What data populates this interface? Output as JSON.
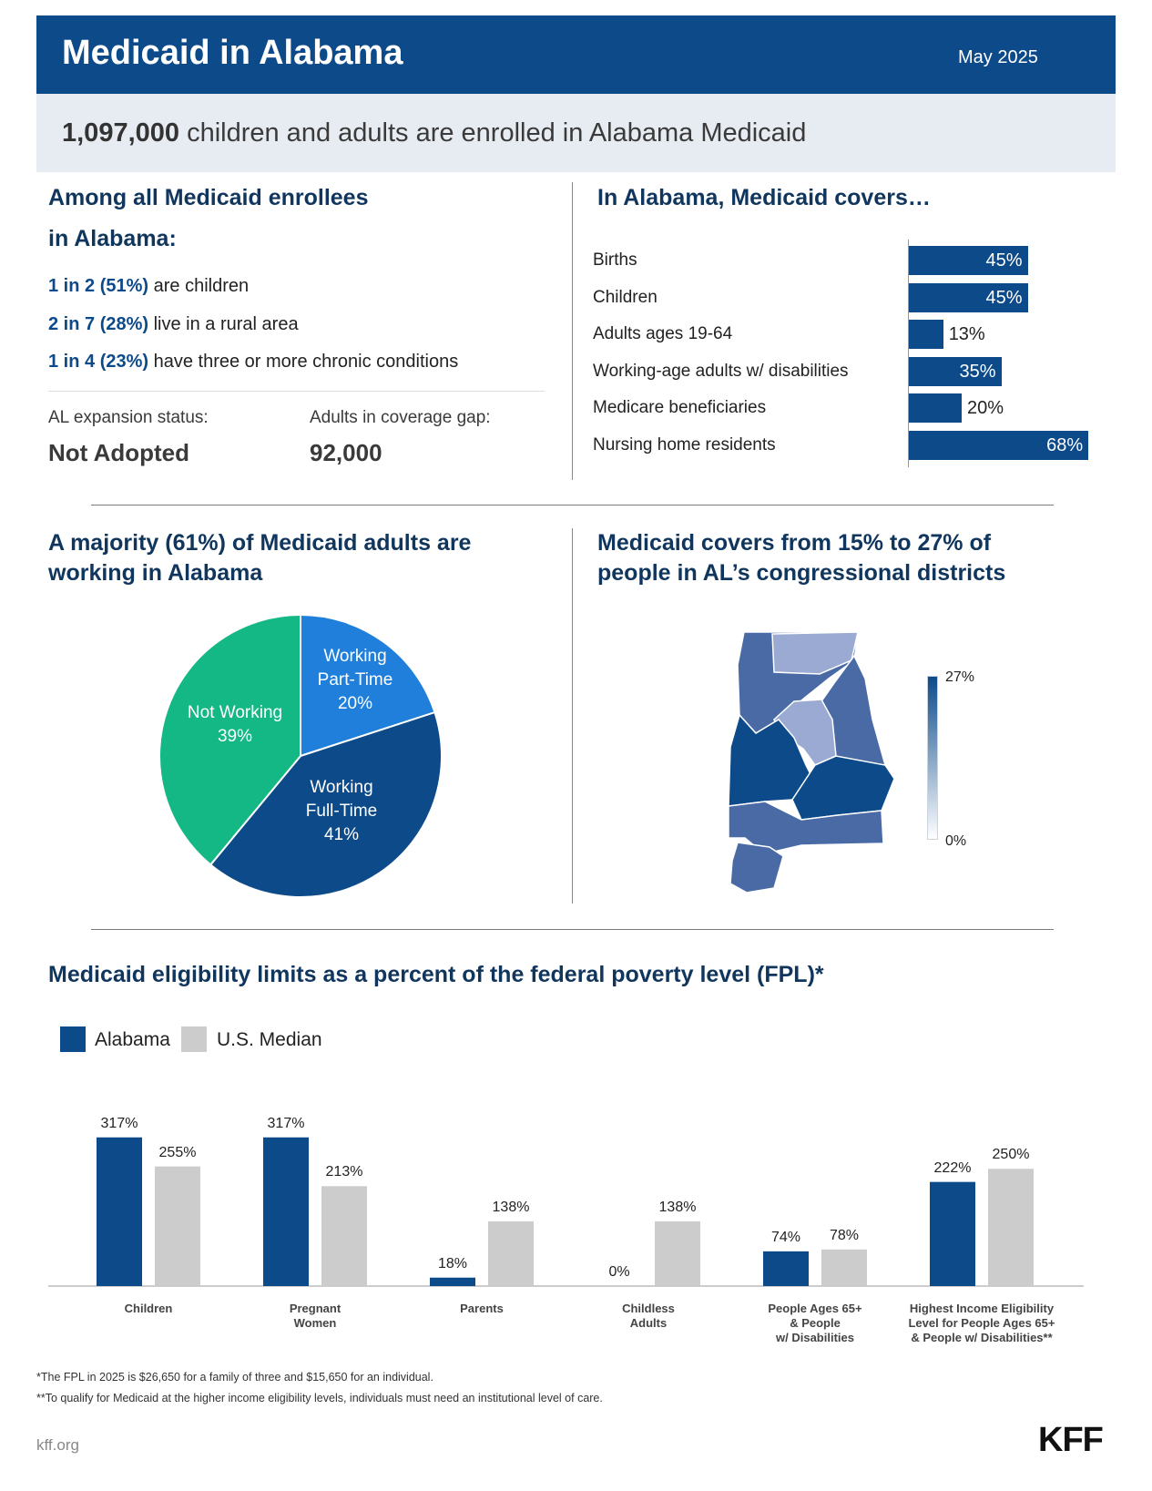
{
  "header": {
    "title": "Medicaid in Alabama",
    "date": "May 2025"
  },
  "enrollment": {
    "count": "1,097,000",
    "text": " children and adults are enrolled in Alabama Medicaid"
  },
  "enrollees": {
    "heading_line1": "Among all Medicaid enrollees",
    "heading_line2": "in Alabama:",
    "stats": [
      {
        "highlight": "1 in 2 (51%)",
        "text": " are children"
      },
      {
        "highlight": "2 in 7 (28%)",
        "text": " live in a rural area"
      },
      {
        "highlight": "1 in 4 (23%)",
        "text": " have three or more chronic conditions"
      }
    ],
    "expansion_label": "AL expansion status:",
    "expansion_value": "Not Adopted",
    "gap_label": "Adults in coverage gap:",
    "gap_value": "92,000"
  },
  "coverage": {
    "heading": "In Alabama, Medicaid covers…",
    "rows": [
      {
        "label": "Births",
        "value": 45,
        "display": "45%"
      },
      {
        "label": "Children",
        "value": 45,
        "display": "45%"
      },
      {
        "label": "Adults ages 19-64",
        "value": 13,
        "display": "13%"
      },
      {
        "label": "Working-age adults w/ disabilities",
        "value": 35,
        "display": "35%"
      },
      {
        "label": "Medicare beneficiaries",
        "value": 20,
        "display": "20%"
      },
      {
        "label": "Nursing home residents",
        "value": 68,
        "display": "68%"
      }
    ]
  },
  "working": {
    "heading_line1": "A majority (61%) of Medicaid adults are",
    "heading_line2": "working in Alabama",
    "slices": [
      {
        "label_line1": "Working",
        "label_line2": "Part-Time",
        "display": "20%",
        "value": 20,
        "color": "#1f7fdb"
      },
      {
        "label_line1": "Working",
        "label_line2": "Full-Time",
        "display": "41%",
        "value": 41,
        "color": "#0c4a8a"
      },
      {
        "label_line1": "Not Working",
        "label_line2": "",
        "display": "39%",
        "value": 39,
        "color": "#14b884"
      }
    ]
  },
  "districts": {
    "heading_line1": "Medicaid covers from 15% to 27% of",
    "heading_line2": "people in AL’s congressional districts",
    "scale_max": "27%",
    "scale_min": "0%",
    "colors": {
      "dark": "#0c4a8a",
      "mid": "#4a6aa6",
      "light": "#9aaad2"
    }
  },
  "chart_data": {
    "type": "bar",
    "title": "Medicaid eligibility limits as a percent of the federal poverty level (FPL)*",
    "categories": [
      "Children",
      "Pregnant Women",
      "Parents",
      "Childless Adults",
      "People Ages 65+ & People w/ Disabilities",
      "Highest Income Eligibility Level for People Ages 65+ & People w/ Disabilities**"
    ],
    "category_lines": [
      [
        "Children"
      ],
      [
        "Pregnant",
        "Women"
      ],
      [
        "Parents"
      ],
      [
        "Childless",
        "Adults"
      ],
      [
        "People Ages 65+",
        "& People",
        "w/ Disabilities"
      ],
      [
        "Highest Income Eligibility",
        "Level for People Ages 65+",
        "& People w/ Disabilities**"
      ]
    ],
    "series": [
      {
        "name": "Alabama",
        "color": "#0c4a8a",
        "values": [
          317,
          317,
          18,
          0,
          74,
          222
        ]
      },
      {
        "name": "U.S. Median",
        "color": "#cccccc",
        "values": [
          255,
          213,
          138,
          138,
          78,
          250
        ]
      }
    ],
    "ylim": [
      0,
      330
    ],
    "grid": false,
    "legend": "top-left"
  },
  "footnotes": [
    "*The FPL in 2025 is $26,650 for a family of three and $15,650 for an individual.",
    "**To qualify for Medicaid at the higher income eligibility levels, individuals must need an institutional level of care."
  ],
  "footer": {
    "site": "kff.org",
    "logo": "KFF"
  }
}
